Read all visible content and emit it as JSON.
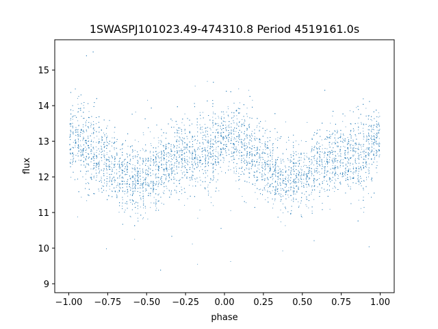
{
  "chart_data": {
    "type": "scatter",
    "title": "1SWASPJ101023.49-474310.8 Period 4519161.0s",
    "xlabel": "phase",
    "ylabel": "flux",
    "xlim": [
      -1.09,
      1.09
    ],
    "ylim": [
      8.75,
      15.85
    ],
    "xticks": [
      -1.0,
      -0.75,
      -0.5,
      -0.25,
      0.0,
      0.25,
      0.5,
      0.75,
      1.0
    ],
    "xtick_labels": [
      "−1.00",
      "−0.75",
      "−0.50",
      "−0.25",
      "0.00",
      "0.25",
      "0.50",
      "0.75",
      "1.00"
    ],
    "yticks": [
      9,
      10,
      11,
      12,
      13,
      14,
      15
    ],
    "ytick_labels": [
      "9",
      "10",
      "11",
      "12",
      "13",
      "14",
      "15"
    ],
    "grid": false,
    "marker_color": "#1f77b4",
    "folded_profile": {
      "description_hidden": true,
      "phase": [
        -1.0,
        -0.9,
        -0.8,
        -0.7,
        -0.6,
        -0.5,
        -0.4,
        -0.3,
        -0.2,
        -0.1,
        0.0,
        0.1,
        0.2,
        0.3,
        0.4,
        0.5,
        0.6,
        0.7,
        0.8,
        0.9,
        1.0
      ],
      "flux_center": [
        13.1,
        12.9,
        12.6,
        12.2,
        11.9,
        12.0,
        12.3,
        12.5,
        12.6,
        12.7,
        13.1,
        12.9,
        12.6,
        12.2,
        11.9,
        12.0,
        12.3,
        12.5,
        12.6,
        12.7,
        13.1
      ],
      "flux_spread": [
        0.45,
        0.6,
        0.55,
        0.45,
        0.5,
        0.5,
        0.45,
        0.45,
        0.5,
        0.6,
        0.45,
        0.6,
        0.55,
        0.45,
        0.5,
        0.5,
        0.45,
        0.45,
        0.5,
        0.6,
        0.45
      ]
    }
  }
}
